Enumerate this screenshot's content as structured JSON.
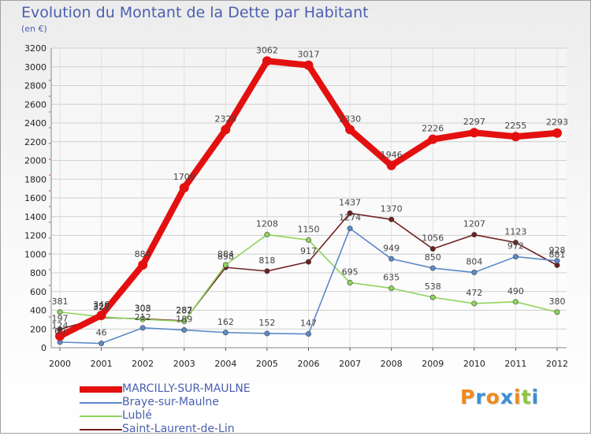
{
  "chart_data": {
    "type": "line",
    "title": "Evolution du Montant de la Dette par Habitant",
    "subtitle": "(en €)",
    "xlabel": "",
    "ylabel": "",
    "x": [
      "2000",
      "2001",
      "2002",
      "2003",
      "2004",
      "2005",
      "2006",
      "2007",
      "2008",
      "2009",
      "2010",
      "2011",
      "2012"
    ],
    "ylim": [
      0,
      3200
    ],
    "yticks": [
      0,
      200,
      400,
      600,
      800,
      1000,
      1200,
      1400,
      1600,
      1800,
      2000,
      2200,
      2400,
      2600,
      2800,
      3000,
      3200
    ],
    "grid": true,
    "legend_position": "bottom-left",
    "series": [
      {
        "name": "MARCILLY-SUR-MAULNE",
        "color": "#e41010",
        "values": [
          124,
          346,
          884,
          1708,
          2329,
          3062,
          3017,
          2330,
          1946,
          2226,
          2297,
          2255,
          2293
        ],
        "labels": [
          "124",
          "346",
          "884",
          "1708",
          "2329",
          "3062",
          "3017",
          "2330",
          "1946",
          "2226",
          "2297",
          "2255",
          "2293"
        ]
      },
      {
        "name": "Braye-sur-Maulne",
        "color": "#5b8ac8",
        "values": [
          60,
          46,
          212,
          189,
          162,
          152,
          147,
          1274,
          949,
          850,
          804,
          972,
          928
        ],
        "labels": [
          "60",
          "46",
          "212",
          "189",
          "162",
          "152",
          "147",
          "1274",
          "949",
          "850",
          "804",
          "972",
          "928"
        ]
      },
      {
        "name": "Lublé",
        "color": "#8ed45c",
        "values": [
          381,
          329,
          303,
          282,
          884,
          1208,
          1150,
          695,
          635,
          538,
          472,
          490,
          380
        ],
        "labels": [
          "381",
          "329",
          "303",
          "282",
          "884",
          "1208",
          "1150",
          "695",
          "635",
          "538",
          "472",
          "490",
          "380"
        ]
      },
      {
        "name": "Saint-Laurent-de-Lin",
        "color": "#6f2020",
        "values": [
          197,
          322,
          308,
          287,
          858,
          818,
          917,
          1437,
          1370,
          1056,
          1207,
          1123,
          881
        ],
        "labels": [
          "197",
          "322",
          "308",
          "287",
          "858",
          "818",
          "917",
          "1437",
          "1370",
          "1056",
          "1207",
          "1123",
          "881"
        ]
      }
    ]
  },
  "logo": {
    "letters": [
      "P",
      "r",
      "o",
      "x",
      "i",
      "t",
      "i"
    ],
    "colors": [
      "#f08a1c",
      "#3d8fd6",
      "#f08a1c",
      "#3d8fd6",
      "#f08a1c",
      "#8ec63f",
      "#3d8fd6"
    ]
  }
}
